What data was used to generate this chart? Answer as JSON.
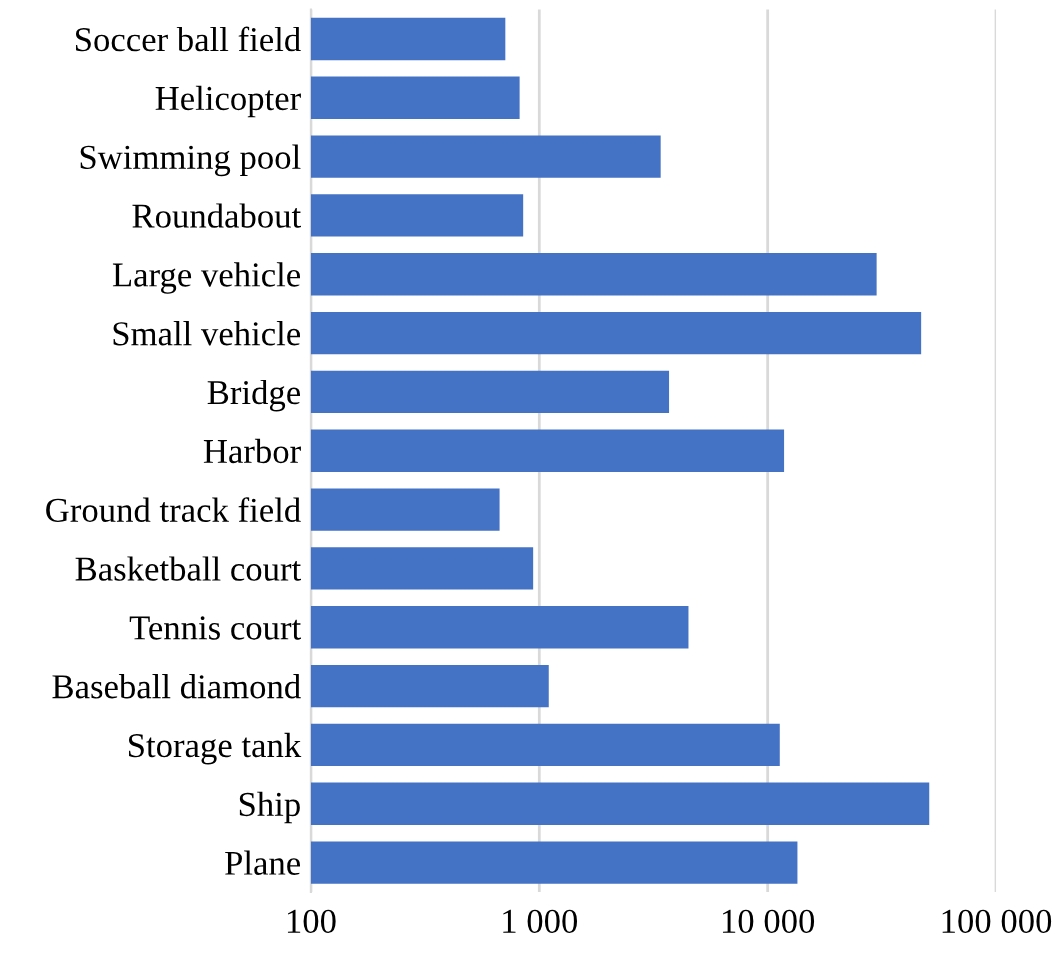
{
  "chart_data": {
    "type": "bar",
    "orientation": "horizontal",
    "log": "x",
    "color": "#4472c4",
    "categories": [
      "Soccer ball field",
      "Helicopter",
      "Swimming pool",
      "Roundabout",
      "Large vehicle",
      "Small vehicle",
      "Bridge",
      "Harbor",
      "Ground track field",
      "Basketball court",
      "Tennis court",
      "Baseball diamond",
      "Storage tank",
      "Ship",
      "Plane"
    ],
    "values": [
      710,
      820,
      3400,
      850,
      30000,
      47000,
      3700,
      11800,
      670,
      940,
      4500,
      1100,
      11300,
      51000,
      13500
    ],
    "xlim": [
      100,
      100000
    ],
    "xticks": [
      100,
      {
        "value": 1000,
        "label": "1 000"
      },
      {
        "value": 10000,
        "label": "10 000"
      },
      {
        "value": 100000,
        "label": "100 000"
      }
    ],
    "grid": "x"
  }
}
